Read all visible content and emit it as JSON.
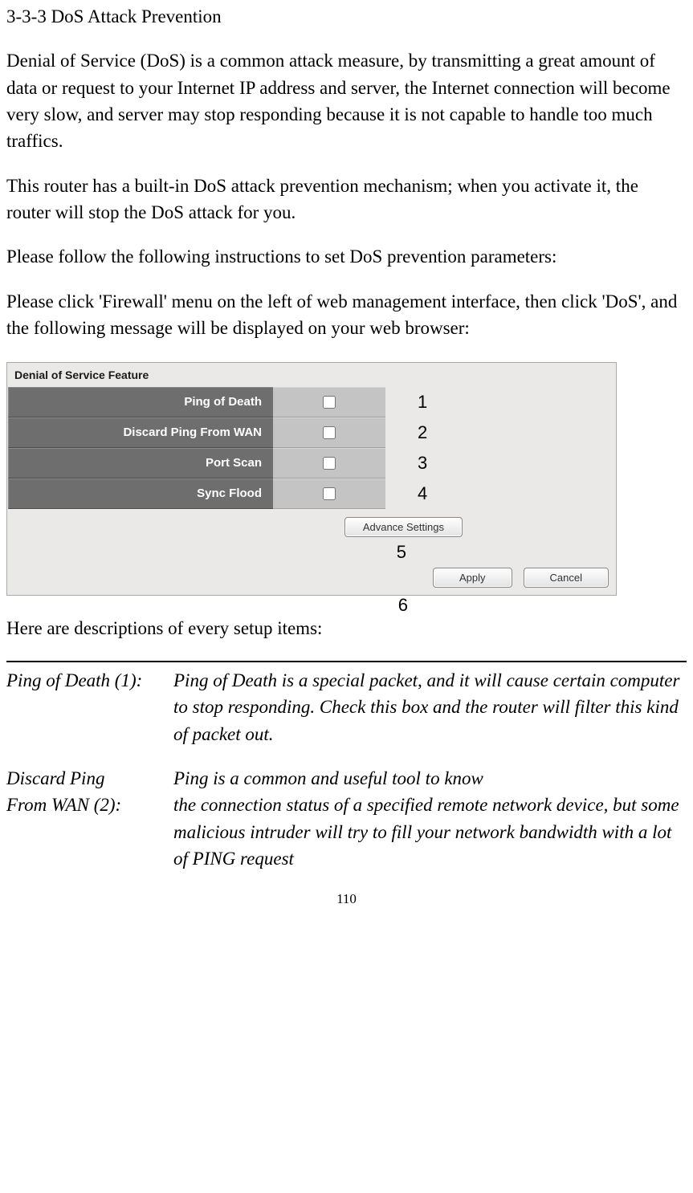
{
  "heading": "3-3-3 DoS Attack Prevention",
  "paragraphs": {
    "p1": "Denial of Service (DoS) is a common attack measure, by transmitting a great amount of data or request to your Internet IP address and server, the Internet connection will become very slow, and server may stop responding because it is not capable to handle too much traffics.",
    "p2": "This router has a built-in DoS attack prevention mechanism; when you activate it, the router will stop the DoS attack for you.",
    "p3": "Please follow the following instructions to set DoS prevention parameters:",
    "p4": "Please click 'Firewall' menu on the left of web management interface, then click 'DoS', and the following message will be displayed on your web browser:"
  },
  "panel": {
    "title": "Denial of Service Feature",
    "rows": [
      {
        "label": "Ping of Death",
        "annot": "1"
      },
      {
        "label": "Discard Ping From WAN",
        "annot": "2"
      },
      {
        "label": "Port Scan",
        "annot": "3"
      },
      {
        "label": "Sync Flood",
        "annot": "4"
      }
    ],
    "adv_btn": "Advance Settings",
    "apply_btn": "Apply",
    "cancel_btn": "Cancel",
    "annot5": "5",
    "annot6": "6",
    "colors": {
      "panel_bg": "#eae9e7",
      "label_bg": "#6e6e6e",
      "value_bg": "#c4c4c4",
      "label_text": "#ffffff"
    }
  },
  "descriptions": {
    "intro": "Here are descriptions of every setup items:",
    "items": [
      {
        "left_lines": [
          "Ping of Death (1):"
        ],
        "right_lines": [
          "Ping of Death is a special packet, and it will cause certain computer to stop responding. Check this box and the router will filter this kind of packet out."
        ]
      },
      {
        "left_lines": [
          "Discard Ping",
          "From WAN (2):"
        ],
        "right_lines": [
          "Ping is a common and useful tool to know",
          "the connection status of a specified remote network device, but some malicious intruder will try to fill your network bandwidth with a lot of PING request"
        ]
      }
    ]
  },
  "page_number": "110"
}
